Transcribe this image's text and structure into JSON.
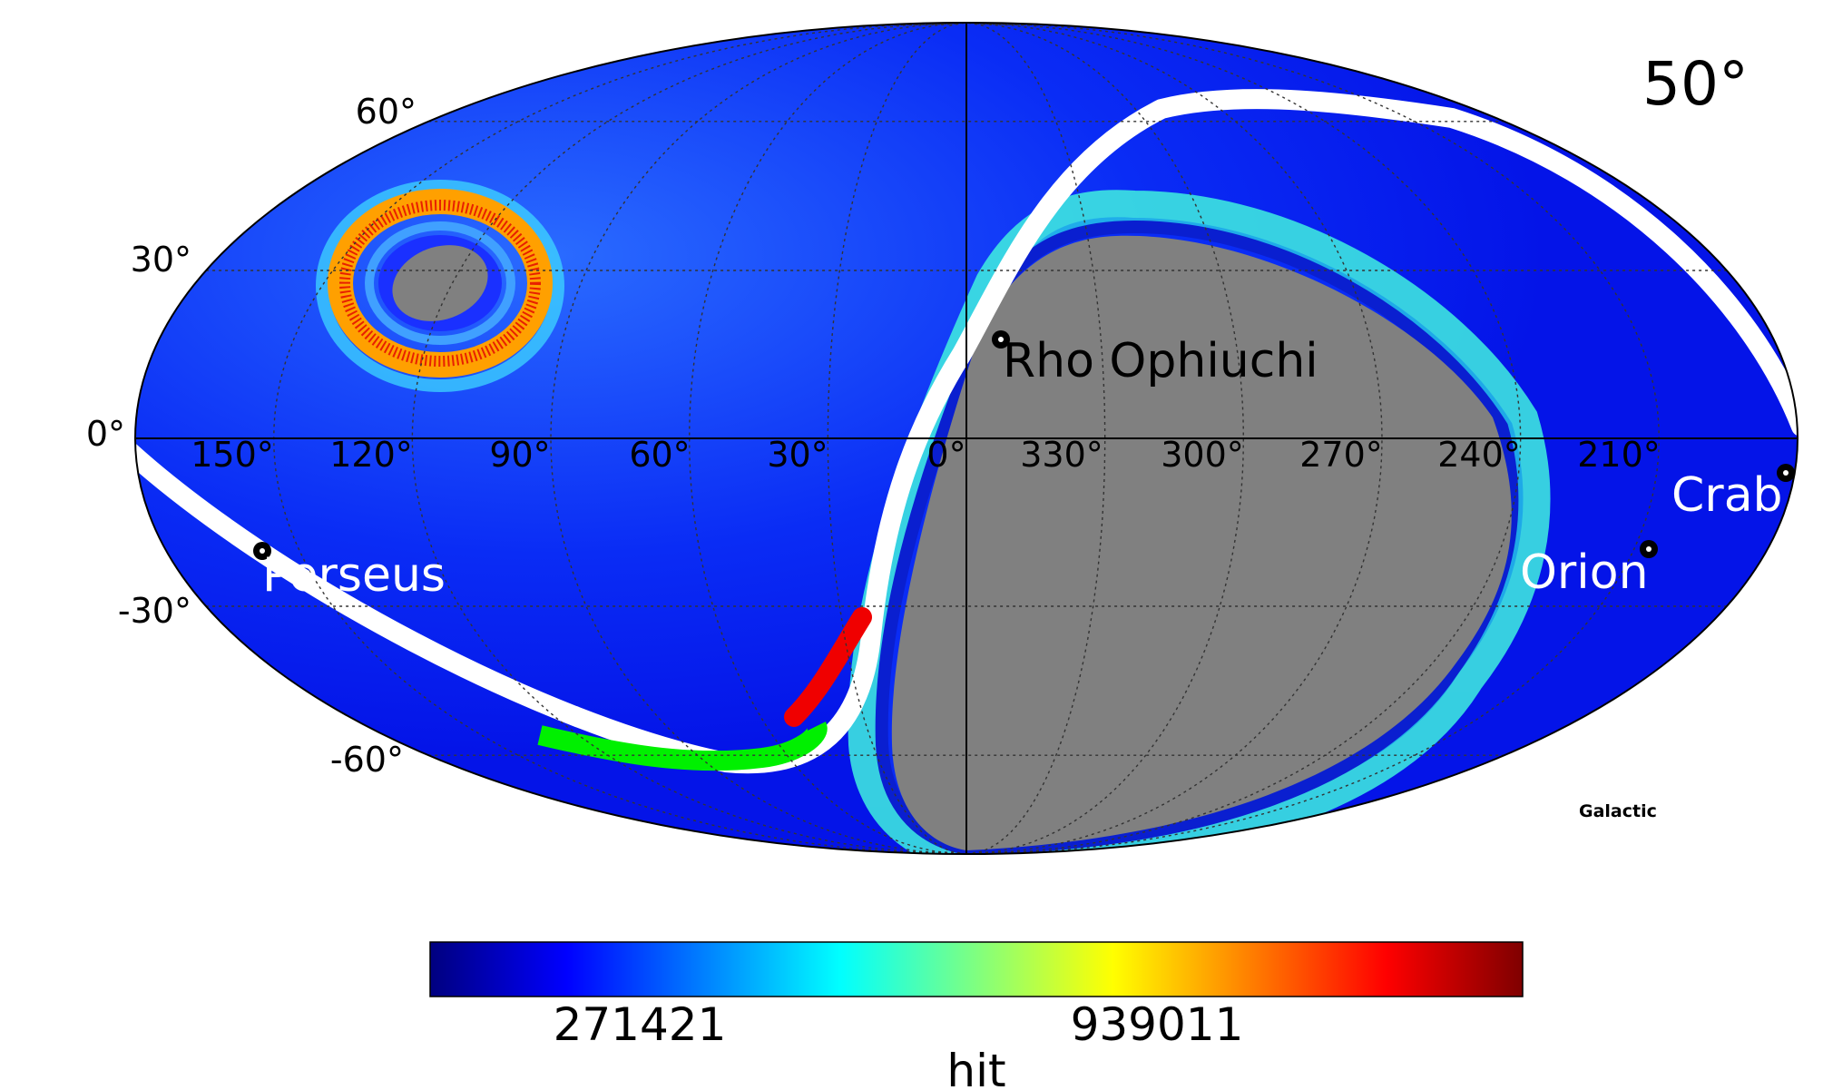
{
  "map": {
    "angle_label": "50°",
    "projection_label": "Galactic",
    "lat_labels": [
      "60°",
      "30°",
      "0°",
      "-30°",
      "-60°"
    ],
    "lon_labels": [
      "150°",
      "120°",
      "90°",
      "60°",
      "30°",
      "0°",
      "330°",
      "300°",
      "270°",
      "240°",
      "210°"
    ],
    "sources": [
      {
        "name": "Rho Ophiuchi",
        "color": "#000000"
      },
      {
        "name": "Perseus",
        "color": "#ffffff"
      },
      {
        "name": "Orion",
        "color": "#ffffff"
      },
      {
        "name": "Crab",
        "color": "#ffffff"
      }
    ],
    "colors": {
      "background": "#0a1ff5",
      "excluded_region": "#808080",
      "path_white": "#ffffff",
      "path_green": "#00f000",
      "path_red": "#f00000",
      "grid": "#333333"
    }
  },
  "colorbar": {
    "tick_labels": [
      "271421",
      "939011"
    ],
    "label": "hit",
    "colormap": "jet"
  }
}
